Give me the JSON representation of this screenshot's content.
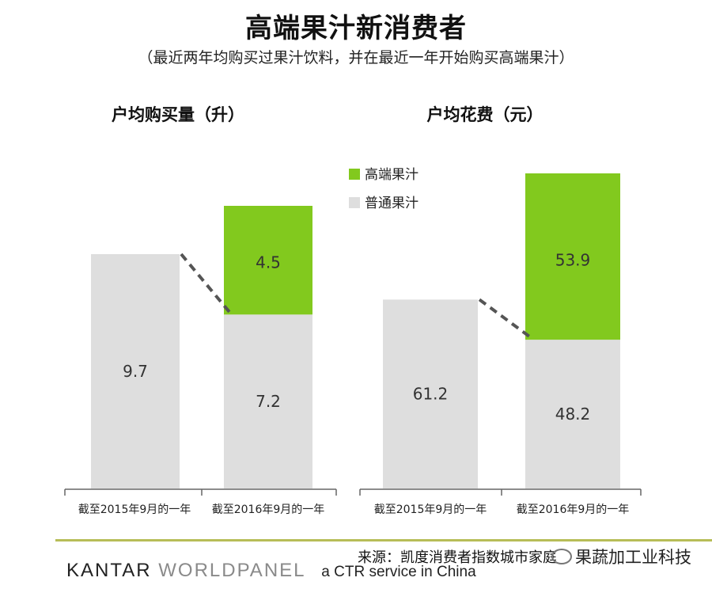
{
  "title": "高端果汁新消费者",
  "subtitle": "（最近两年均购买过果汁饮料，并在最近一年开始购买高端果汁）",
  "colors": {
    "premium": "#82c91e",
    "regular": "#dedede",
    "dash": "#555555"
  },
  "legend": [
    "高端果汁",
    "普通果汁"
  ],
  "chart_data": [
    {
      "type": "bar",
      "stacked": true,
      "title": "户均购买量（升）",
      "categories": [
        "截至2015年9月的一年",
        "截至2016年9月的一年"
      ],
      "series": [
        {
          "name": "普通果汁",
          "values": [
            9.7,
            7.2
          ]
        },
        {
          "name": "高端果汁",
          "values": [
            0,
            4.5
          ]
        }
      ]
    },
    {
      "type": "bar",
      "stacked": true,
      "title": "户均花费（元）",
      "categories": [
        "截至2015年9月的一年",
        "截至2016年9月的一年"
      ],
      "series": [
        {
          "name": "普通果汁",
          "values": [
            61.2,
            48.2
          ]
        },
        {
          "name": "高端果汁",
          "values": [
            0,
            53.9
          ]
        }
      ]
    }
  ],
  "source": "来源：凯度消费者指数城市家庭",
  "logo": {
    "kantar": "KANTAR",
    "worldpanel": "WORLDPANEL",
    "tagline": "a CTR service in China"
  },
  "watermark": "果蔬加工业科技"
}
